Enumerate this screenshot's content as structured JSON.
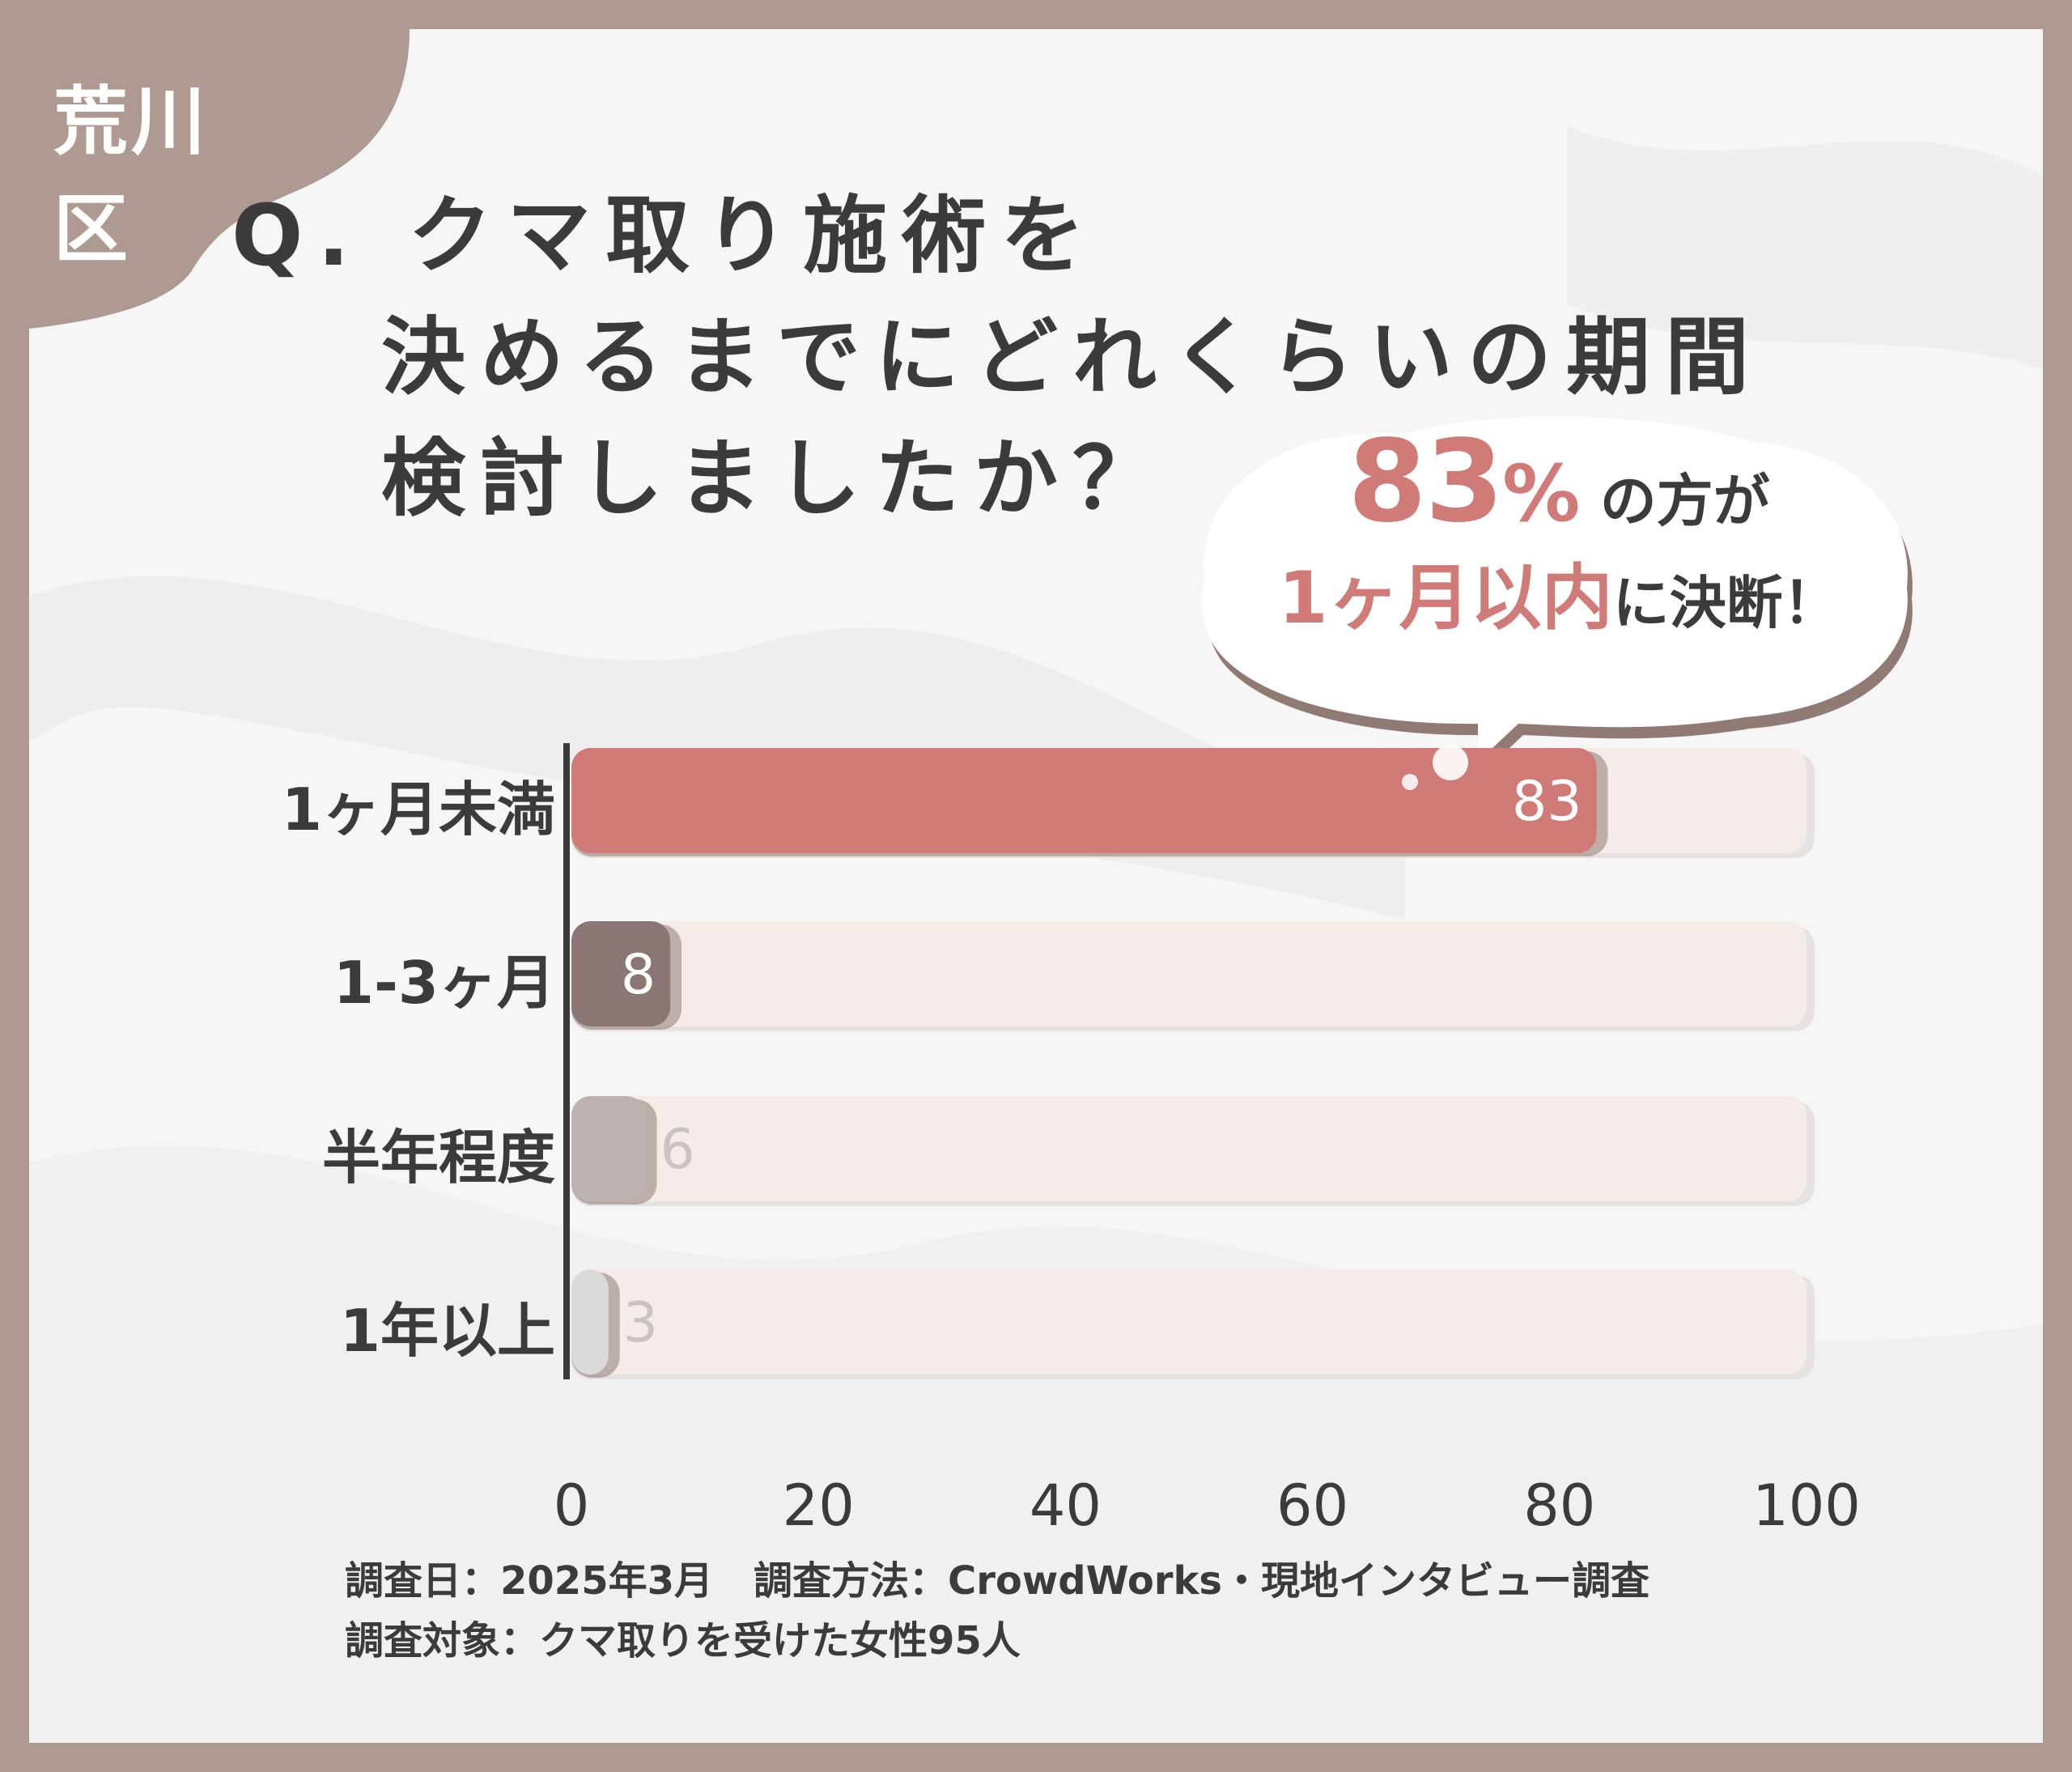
{
  "region": {
    "label": "荒川区"
  },
  "question": {
    "line1": "Q. クマ取り施術を",
    "line2": "決めるまでにどれくらいの期間",
    "line3": "検討しましたか？"
  },
  "callout": {
    "percent_value": "83",
    "percent_sign": "%",
    "line1_suffix": "の方が",
    "highlight": "1ヶ月以内",
    "line2_suffix": "に決断！"
  },
  "chart_data": {
    "type": "bar",
    "orientation": "horizontal",
    "categories": [
      "1ヶ月未満",
      "1-3ヶ月",
      "半年程度",
      "1年以上"
    ],
    "values": [
      83,
      8,
      6,
      3
    ],
    "xlim": [
      0,
      100
    ],
    "xticks": [
      "0",
      "20",
      "40",
      "60",
      "80",
      "100"
    ],
    "colors": [
      "#d07b78",
      "#8b7676",
      "#bdb4b2",
      "#dcd9d9"
    ],
    "track_color": "#f5ebe8",
    "grid": false,
    "title": "",
    "xlabel": "",
    "ylabel": ""
  },
  "footnote": {
    "survey_date": "調査日：2025年3月",
    "survey_method": "調査方法：CrowdWorks・現地インタビュー調査",
    "survey_target": "調査対象：クマ取りを受けた女性95人"
  }
}
